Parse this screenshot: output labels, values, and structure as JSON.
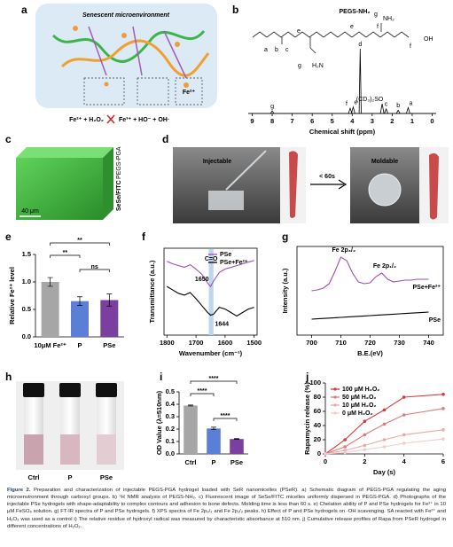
{
  "panel_letters": [
    "a",
    "b",
    "c",
    "d",
    "e",
    "f",
    "g",
    "h",
    "i",
    "j"
  ],
  "panel_a": {
    "title": "Senescent microenvironment",
    "box_label": "Fe²⁺",
    "reaction": [
      "Fe²⁺ + H₂O₂",
      "Fe³⁺ + HO⁻ + OH·"
    ]
  },
  "panel_b": {
    "title": "PEGS-NH₂",
    "structure_labels": [
      "a",
      "b",
      "c",
      "e",
      "e",
      "f",
      "g",
      "f",
      "g"
    ],
    "atoms": [
      "H₂N",
      "NH₂",
      "OH"
    ]
  },
  "panel_c": {
    "stain": [
      "SeSe/FITC",
      "PEGS-PGA"
    ],
    "scale_bar": "40 μm"
  },
  "panel_d": {
    "left": "Injectable",
    "arrow": "< 60s",
    "right": "Moldable"
  },
  "panel_h": {
    "labels": [
      "Ctrl",
      "P",
      "PSe"
    ]
  },
  "chart_data": [
    {
      "type": "spectrum",
      "xlabel": "Chemical shift (ppm)",
      "xlim": [
        9.2,
        -0.2
      ],
      "xticks": [
        9,
        8,
        7,
        6,
        5,
        4,
        3,
        2,
        1,
        0
      ],
      "ylim": [
        0,
        10
      ],
      "color": "#000000",
      "x": [
        8.0,
        4.1,
        3.95,
        3.6,
        2.5,
        2.3,
        1.7,
        1.2
      ],
      "values": [
        0.4,
        0.8,
        1.0,
        10,
        1.5,
        0.7,
        0.5,
        0.9
      ],
      "labels": [
        "g",
        "f",
        "e",
        "d",
        "(CD₃)₂SO",
        "c",
        "b",
        "a"
      ],
      "label_colors": [
        "#d32f2f",
        "#d32f2f",
        "#d32f2f",
        "#d32f2f",
        "#000000",
        "#d32f2f",
        "#d32f2f",
        "#d32f2f"
      ]
    },
    {
      "type": "bar",
      "ylabel": "Relative Fe²⁺ level",
      "categories": [
        "10μM Fe²⁺",
        "P",
        "PSe"
      ],
      "values": [
        1.0,
        0.65,
        0.67
      ],
      "errors": [
        0.08,
        0.08,
        0.11
      ],
      "colors": [
        "#a6a6a6",
        "#5b7fd6",
        "#7b3fa0"
      ],
      "ylim": [
        0,
        1.5
      ],
      "yticks": [
        {
          "value": 0,
          "label": "0.0"
        },
        {
          "value": 0.5,
          "label": "0.5"
        },
        {
          "value": 1,
          "label": "1.0"
        },
        {
          "value": 1.5,
          "label": "1.5"
        }
      ],
      "significance": [
        "**",
        "**",
        "ns"
      ]
    },
    {
      "type": "line",
      "xlabel": "Wavenumber (cm⁻¹)",
      "ylabel": "Transmittance (a.u.)",
      "xlim": [
        1810,
        1490
      ],
      "xticks": [
        1800,
        1700,
        1600,
        1500
      ],
      "ylim": [
        0,
        10
      ],
      "legend": "top-right",
      "x": [
        1800,
        1780,
        1760,
        1740,
        1720,
        1700,
        1680,
        1660,
        1650,
        1640,
        1620,
        1600,
        1580,
        1560,
        1540,
        1520,
        1500
      ],
      "series": [
        {
          "name": "PSe",
          "color": "#9b4fb5",
          "values": [
            8.5,
            8.2,
            8.0,
            7.8,
            8.1,
            7.6,
            7.0,
            6.0,
            5.6,
            6.2,
            7.2,
            7.6,
            7.8,
            8.0,
            8.2,
            8.4,
            8.6
          ]
        },
        {
          "name": "PSe+Fe²⁺",
          "color": "#000000",
          "values": [
            5.6,
            5.2,
            4.8,
            4.6,
            4.9,
            4.2,
            3.4,
            2.6,
            2.3,
            2.4,
            3.2,
            3.0,
            2.6,
            2.2,
            2.6,
            3.0,
            3.2
          ]
        }
      ],
      "annotations": [
        "C=O",
        "1650",
        "1644"
      ],
      "highlight": [
        1656,
        1640
      ],
      "highlight_color": "#bcd7ef"
    },
    {
      "type": "line",
      "xlabel": "B.E.(eV)",
      "ylabel": "Intensity (a.u.)",
      "xlim": [
        695,
        745
      ],
      "xticks": [
        700,
        710,
        720,
        730,
        740
      ],
      "ylim": [
        0,
        10
      ],
      "x": [
        700,
        702,
        704,
        706,
        708,
        710,
        712,
        714,
        716,
        718,
        720,
        722,
        724,
        726,
        728,
        730,
        732,
        734,
        736,
        738,
        740
      ],
      "series": [
        {
          "name": "PSe+Fe²⁺",
          "color": "#9b4fb5",
          "values": [
            5.0,
            5.1,
            5.3,
            5.8,
            7.2,
            8.8,
            8.4,
            7.0,
            6.0,
            5.8,
            5.9,
            6.6,
            7.0,
            6.3,
            6.0,
            6.1,
            6.2,
            6.2,
            6.3,
            6.3,
            6.3
          ]
        },
        {
          "name": "PSe",
          "color": "#000000",
          "values": [
            1.8,
            1.84,
            1.88,
            1.92,
            1.96,
            2.0,
            2.04,
            2.08,
            2.12,
            2.16,
            2.2,
            2.24,
            2.28,
            2.32,
            2.36,
            2.4,
            2.44,
            2.48,
            2.52,
            2.56,
            2.6
          ]
        }
      ],
      "annotations": [
        "Fe 2p₃/₂",
        "Fe 2p₁/₂"
      ]
    },
    {
      "type": "bar",
      "ylabel": "OD Value (λ=510nm)",
      "categories": [
        "Ctrl",
        "P",
        "PSe"
      ],
      "values": [
        0.39,
        0.205,
        0.12
      ],
      "errors": [
        0.004,
        0.01,
        0.003
      ],
      "colors": [
        "#a6a6a6",
        "#5b7fd6",
        "#7b3fa0"
      ],
      "ylim": [
        0,
        0.5
      ],
      "yticks": [
        {
          "value": 0,
          "label": "0.0"
        },
        0.1,
        0.2,
        0.3,
        0.4,
        0.5
      ],
      "significance": [
        "****",
        "****",
        "****"
      ]
    },
    {
      "type": "line",
      "markers": true,
      "xlabel": "Day (s)",
      "ylabel": "Rapamycin release (%)",
      "xlim": [
        0,
        6
      ],
      "xticks": [
        0,
        2,
        4,
        6
      ],
      "ylim": [
        0,
        100
      ],
      "yticks": [
        0,
        20,
        40,
        60,
        80,
        100
      ],
      "legend": "top-left",
      "x": [
        0,
        1,
        2,
        3,
        4,
        6
      ],
      "series": [
        {
          "name": "100 μM H₂O₂",
          "color": "#d63b3b",
          "values": [
            0,
            20,
            46,
            62,
            80,
            84
          ]
        },
        {
          "name": "50 μM H₂O₂",
          "color": "#e07a7a",
          "values": [
            0,
            10,
            27,
            42,
            55,
            64
          ]
        },
        {
          "name": "10 μM H₂O₂",
          "color": "#eba8a8",
          "values": [
            0,
            5,
            12,
            20,
            27,
            34
          ]
        },
        {
          "name": "0 μM H₂O₂",
          "color": "#f3cccc",
          "values": [
            0,
            2,
            6,
            10,
            15,
            21
          ]
        }
      ]
    }
  ],
  "caption": {
    "label": "Figure 2.",
    "text": "Preparation and characterization of injectable PEGS-PGA hydrogel loaded with SeR nanomicelles (PSeR). a) Schematic diagram of PEGS-PGA regulating the aging microenvironment through carboxyl groups. b) ¹H NMR analysis of PEGS-NH₂. c) Fluorescent image of SeSe/FITC micelles uniformly dispersed in PEGS-PGA. d) Photographs of the injectable PSe hydrogels with shape-adaptability to complex contours and adhesion to bone defects. Molding time is less than 60 s. e) Chelation ability of P and PSe hydrogels for Fe²⁺ in 10 μM FeSO₄ solution. g) FT-IR spectra of P and PSe hydrogels. f) XPS spectra of Fe 2p₃/₂ and Fe 2p₁/₂ peaks. h) Effect of P and PSe hydrogels on ·OH scavenging. SA reacted with Fe²⁺ and H₂O₂ was used as a control i) The relative residue of hydroxyl radical was measured by characteristic absorbance at 510 nm. j) Cumulative release profiles of Rapa from PSeR hydrogel in different concentrations of H₂O₂."
  }
}
